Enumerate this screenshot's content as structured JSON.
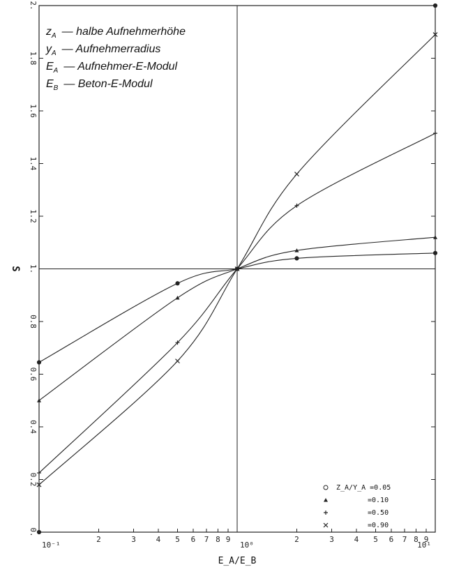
{
  "chart_data": {
    "type": "line",
    "x_scale": "log",
    "xlim": [
      0.1,
      10
    ],
    "ylim": [
      0,
      2.0
    ],
    "xlabel": "E_A/E_B",
    "ylabel": "S",
    "y_ticks": [
      "0.",
      "0.2",
      "0.4",
      "0.6",
      "0.8",
      "1.",
      "1.2",
      "1.4",
      "1.6",
      "1.8",
      "2."
    ],
    "x_major_labels": [
      "10⁻¹",
      "10⁰",
      "10¹"
    ],
    "x_minor_labels": [
      "2",
      "3",
      "4",
      "5",
      "6",
      "7",
      "8",
      "9"
    ],
    "reference_lines": {
      "x": 1,
      "y": 1.0
    },
    "definitions": [
      {
        "symbol": "z",
        "sub": "A",
        "text": "— halbe Aufnehmerhöhe"
      },
      {
        "symbol": "y",
        "sub": "A",
        "text": "— Aufnehmerradius"
      },
      {
        "symbol": "E",
        "sub": "A",
        "text": "— Aufnehmer-E-Modul"
      },
      {
        "symbol": "E",
        "sub": "B",
        "text": "— Beton-E-Modul"
      }
    ],
    "legend": [
      {
        "marker": "circle",
        "label": "Z_A/Y_A =0.05"
      },
      {
        "marker": "triangle",
        "label": "=0.10"
      },
      {
        "marker": "plus",
        "label": "=0.50"
      },
      {
        "marker": "cross",
        "label": "=0.90"
      }
    ],
    "series": [
      {
        "marker": "circle",
        "x": [
          0.1,
          0.5,
          1,
          2,
          10
        ],
        "y": [
          0.645,
          0.945,
          1.0,
          1.04,
          1.06
        ]
      },
      {
        "marker": "triangle",
        "x": [
          0.1,
          0.5,
          1,
          2,
          10
        ],
        "y": [
          0.5,
          0.89,
          1.0,
          1.07,
          1.12
        ]
      },
      {
        "marker": "plus",
        "x": [
          0.1,
          0.5,
          1,
          2,
          10
        ],
        "y": [
          0.225,
          0.72,
          1.0,
          1.24,
          1.515
        ]
      },
      {
        "marker": "cross",
        "x": [
          0.1,
          0.5,
          1,
          2,
          10
        ],
        "y": [
          0.18,
          0.65,
          1.0,
          1.36,
          1.89
        ]
      }
    ],
    "extra_points": [
      {
        "marker": "circle",
        "x": 10,
        "y": 2.0
      },
      {
        "marker": "circle",
        "x": 0.1,
        "y": 0.0
      }
    ]
  }
}
